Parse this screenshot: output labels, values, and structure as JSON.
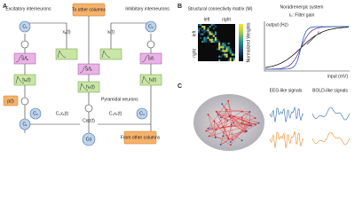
{
  "panel_a": {
    "label": "A",
    "excitatory": "Excitatory interneurons",
    "inhibitory": "Inhibitory interneurons",
    "to_other": "To other columns",
    "from_other": "From other columns",
    "pyramidal": "Pyramidal neurons",
    "c1_top": "C₁",
    "c3_top": "C₃",
    "c1_bottom": "C₁",
    "c2": "C₂",
    "c4": "C₄",
    "calpha": "Cα",
    "xe": "xₑ(t)",
    "xi": "xᵢ(t)",
    "he": "hₑ(t)",
    "hi": "hᵢ(t)",
    "hp": "hₚ(t)",
    "s_left": "S/fₑ",
    "s_right": "S/fᵢ",
    "s_mid": "S/fₚ",
    "p": "p(t)",
    "c2x1": "C₂x₁(t)",
    "c4x1": "C₄x₁(t)",
    "caz": "Cαz(t)"
  },
  "panel_b": {
    "label": "B",
    "matrix_title": "Structural connectivity matrix (M)",
    "left_top": "left",
    "right_top": "right",
    "left_side": "left",
    "right_side": "right",
    "colorbar": "Normalized Weights",
    "nor_title": "Noradrenergic system",
    "gain": "rₚ: Filter gain",
    "y_axis": "output (Hz)",
    "x_axis": "input (mV)",
    "rp": "rₚ"
  },
  "panel_c": {
    "label": "C",
    "eeg": "EEG-like signals",
    "bold": "BOLD-like signals"
  }
}
